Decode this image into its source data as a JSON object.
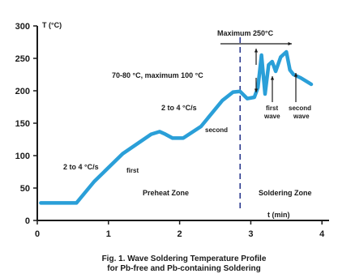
{
  "chart_data": {
    "type": "line",
    "title": "",
    "caption": [
      "Fig. 1. Wave Soldering Temperature Profile",
      "for Pb-free and Pb-containing  Soldering"
    ],
    "ylabel": "T (°C)",
    "xlabel": "t (min)",
    "xlim": [
      0,
      4.1
    ],
    "ylim": [
      0,
      300
    ],
    "x_ticks": [
      0,
      1,
      2,
      3,
      4
    ],
    "y_ticks": [
      0,
      50,
      100,
      150,
      200,
      250,
      300
    ],
    "grid": false,
    "line_color": "#2a9fd8",
    "series": [
      {
        "x": [
          0.05,
          0.55,
          0.8,
          1.2,
          1.6,
          1.72,
          1.8,
          1.9,
          2.05,
          2.3,
          2.6,
          2.75,
          2.85,
          2.95,
          3.05,
          3.1,
          3.15,
          3.2,
          3.25,
          3.3,
          3.35,
          3.42,
          3.5,
          3.55,
          3.6,
          3.7,
          3.85
        ],
        "y": [
          27,
          27,
          60,
          103,
          133,
          137,
          133,
          127,
          127,
          145,
          185,
          198,
          199,
          188,
          190,
          205,
          255,
          195,
          240,
          245,
          230,
          252,
          260,
          232,
          225,
          220,
          210
        ]
      }
    ],
    "annotations": {
      "ramp1": "2 to 4 °C/s",
      "first": "first",
      "ramp2": "2 to 4 °C/s",
      "second": "second",
      "preheat_temp": "70-80 °C, maximum 100 °C",
      "max": "Maximum 250°C",
      "first_wave": [
        "first",
        "wave"
      ],
      "second_wave": [
        "second",
        "wave"
      ],
      "preheat_zone": "Preheat Zone",
      "soldering_zone": "Soldering Zone",
      "zone_boundary_x": 2.85
    }
  }
}
